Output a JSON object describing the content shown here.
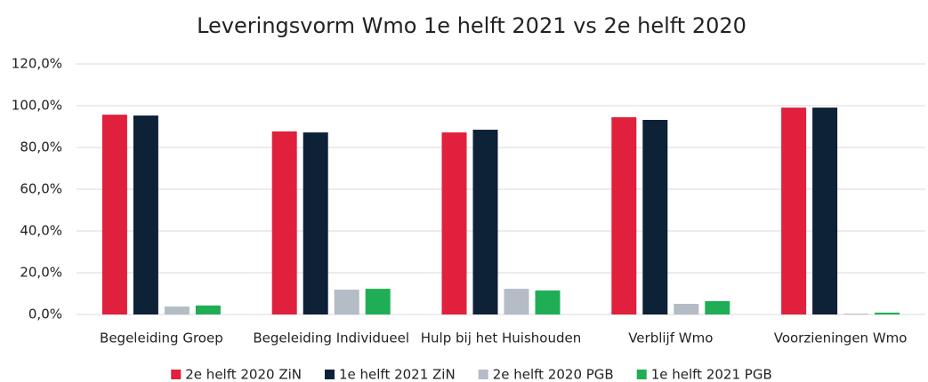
{
  "chart_data": {
    "type": "bar",
    "title": "Leveringsvorm Wmo 1e helft 2021 vs 2e helft 2020",
    "categories": [
      "Begeleiding Groep",
      "Begeleiding Individueel",
      "Hulp bij het Huishouden",
      "Verblijf Wmo",
      "Voorzieningen Wmo"
    ],
    "series": [
      {
        "name": "2e helft 2020 ZiN",
        "color": "#e0203c",
        "values": [
          95.7,
          87.7,
          87.2,
          94.5,
          99.1
        ]
      },
      {
        "name": "1e helft 2021 ZiN",
        "color": "#0d2137",
        "values": [
          95.3,
          87.2,
          88.5,
          93.2,
          99.1
        ]
      },
      {
        "name": "2e helft 2020 PGB",
        "color": "#b4bcc6",
        "values": [
          3.8,
          11.9,
          12.3,
          5.1,
          0.4
        ]
      },
      {
        "name": "1e helft 2021 PGB",
        "color": "#1fae55",
        "values": [
          4.3,
          12.3,
          11.5,
          6.4,
          0.9
        ]
      }
    ],
    "ylim": [
      0,
      120
    ],
    "yticks": [
      {
        "value": 0,
        "label": "0,0%"
      },
      {
        "value": 20,
        "label": "20,0%"
      },
      {
        "value": 40,
        "label": "40,0%"
      },
      {
        "value": 60,
        "label": "60,0%"
      },
      {
        "value": 80,
        "label": "80,0%"
      },
      {
        "value": 100,
        "label": "100,0%"
      },
      {
        "value": 120,
        "label": "120,0%"
      }
    ],
    "grid": true,
    "legend": "bottom"
  }
}
